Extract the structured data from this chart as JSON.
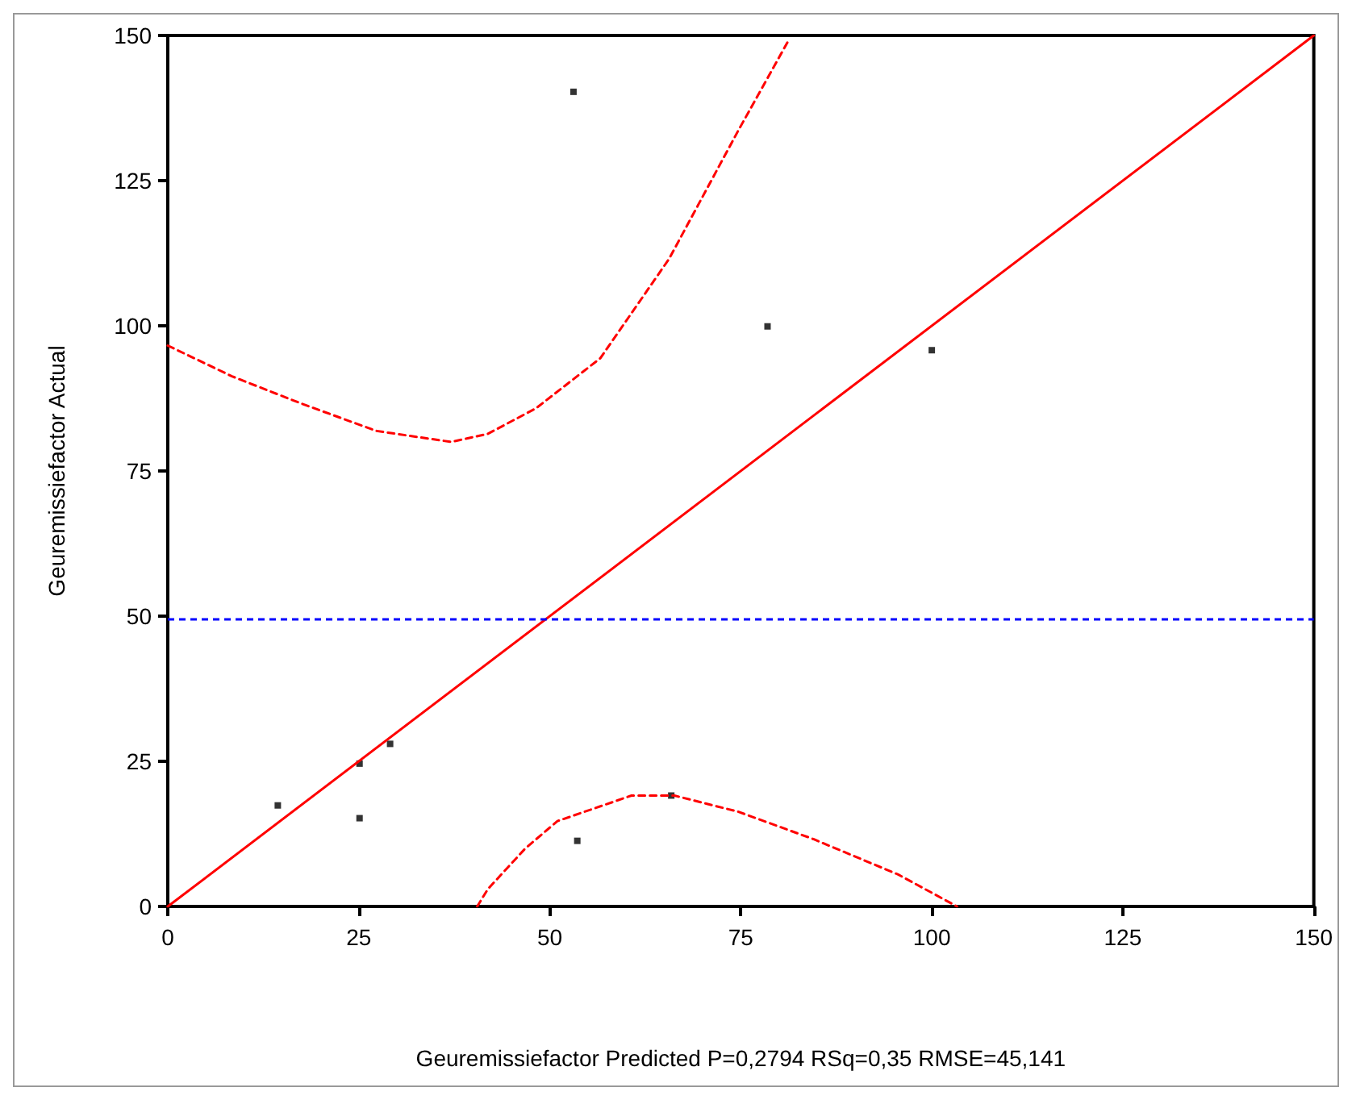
{
  "chart_data": {
    "type": "scatter",
    "xlabel": "Geuremissiefactor Predicted P=0,2794 RSq=0,35 RMSE=45,141",
    "ylabel": "Geuremissiefactor Actual",
    "xlim": [
      0,
      150
    ],
    "xticks": [
      0,
      25,
      50,
      75,
      100,
      125,
      150
    ],
    "ylim": [
      0,
      150
    ],
    "yticks": [
      0,
      25,
      50,
      75,
      100,
      125,
      150
    ],
    "grid": false,
    "marker": "square",
    "series": [
      {
        "color": "#000000",
        "x": [
          14.4,
          25.1,
          29.1,
          25.1,
          53.6,
          65.9,
          53.1,
          78.5,
          100
        ],
        "values": [
          17.4,
          24.6,
          28.0,
          15.2,
          11.3,
          19.1,
          140.3,
          99.9,
          95.8
        ]
      },
      {
        "type": "line",
        "color": "#ff0000",
        "marker": "none",
        "line_style": "solid",
        "x": [
          0,
          150
        ],
        "values": [
          0,
          150
        ]
      },
      {
        "type": "line",
        "color": "#ff0000",
        "marker": "none",
        "line_style": "dashed",
        "x": [
          0,
          8.4,
          17.5,
          27.3,
          37.1,
          41.9,
          48.2,
          56.6,
          65.6,
          74.7,
          81.4
        ],
        "values": [
          96.6,
          91.3,
          86.6,
          81.9,
          80.0,
          81.4,
          85.8,
          94.4,
          111.5,
          133.7,
          149.5
        ]
      },
      {
        "type": "line",
        "color": "#ff0000",
        "marker": "none",
        "line_style": "dashed",
        "x": [
          40.5,
          41.9,
          46.8,
          51.0,
          60.7,
          66.3,
          74.7,
          84.5,
          95.6,
          103.3
        ],
        "values": [
          0,
          3.0,
          10.0,
          14.7,
          19.1,
          19.1,
          16.3,
          11.6,
          5.5,
          0
        ]
      }
    ],
    "ref_lines": [
      {
        "axis": "y",
        "value": 49.6,
        "color": "#0000ff",
        "line_style": "dashed"
      }
    ]
  }
}
